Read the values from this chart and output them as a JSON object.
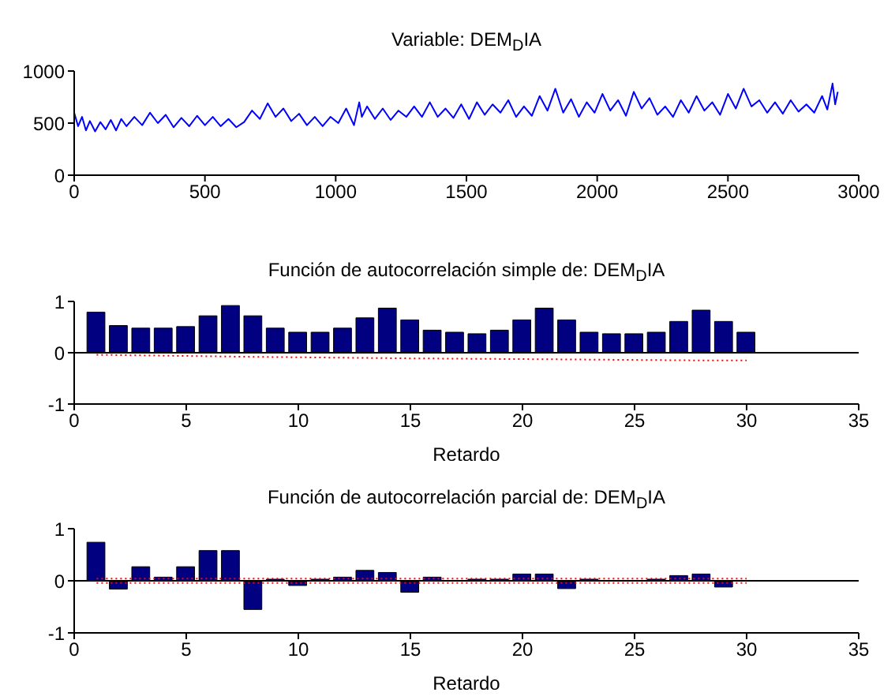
{
  "chart_data": [
    {
      "type": "line",
      "title": "Variable: DEM$_{D}$IA",
      "color": "#0000ff",
      "line_style": "solid",
      "marker": "none",
      "grid": false,
      "legend": false,
      "x": [
        0,
        15,
        30,
        45,
        60,
        80,
        100,
        120,
        140,
        160,
        180,
        200,
        230,
        260,
        290,
        320,
        350,
        380,
        410,
        440,
        470,
        500,
        530,
        560,
        590,
        620,
        650,
        680,
        710,
        740,
        770,
        800,
        830,
        860,
        890,
        920,
        950,
        980,
        1010,
        1040,
        1070,
        1090,
        1100,
        1120,
        1150,
        1180,
        1210,
        1240,
        1270,
        1300,
        1330,
        1360,
        1390,
        1420,
        1450,
        1480,
        1510,
        1540,
        1570,
        1600,
        1630,
        1660,
        1690,
        1720,
        1750,
        1780,
        1810,
        1840,
        1870,
        1900,
        1930,
        1960,
        1990,
        2020,
        2050,
        2080,
        2110,
        2140,
        2170,
        2200,
        2230,
        2260,
        2290,
        2320,
        2350,
        2380,
        2410,
        2440,
        2470,
        2500,
        2530,
        2560,
        2590,
        2620,
        2650,
        2680,
        2710,
        2740,
        2770,
        2800,
        2830,
        2860,
        2880,
        2900,
        2910,
        2920
      ],
      "values": [
        600,
        470,
        560,
        430,
        520,
        420,
        510,
        440,
        530,
        430,
        540,
        470,
        560,
        480,
        600,
        500,
        580,
        460,
        550,
        470,
        570,
        480,
        560,
        470,
        540,
        460,
        510,
        620,
        540,
        690,
        560,
        640,
        520,
        590,
        480,
        560,
        470,
        560,
        500,
        640,
        480,
        700,
        560,
        660,
        540,
        640,
        530,
        620,
        560,
        660,
        560,
        700,
        560,
        640,
        550,
        680,
        540,
        700,
        580,
        680,
        600,
        720,
        560,
        660,
        570,
        760,
        620,
        830,
        600,
        730,
        560,
        700,
        600,
        780,
        620,
        720,
        570,
        800,
        640,
        740,
        580,
        660,
        560,
        720,
        600,
        760,
        620,
        700,
        580,
        780,
        640,
        830,
        660,
        720,
        600,
        700,
        590,
        720,
        610,
        680,
        600,
        760,
        630,
        880,
        680,
        800
      ],
      "xlim": [
        0,
        3000
      ],
      "xticks": [
        0,
        500,
        1000,
        1500,
        2000,
        2500,
        3000
      ],
      "ylim": [
        0,
        1000
      ],
      "yticks": [
        0,
        500,
        1000
      ]
    },
    {
      "type": "bar",
      "title": "Función de autocorrelación simple de: DEM$_{D}$IA",
      "xlabel": "Retardo",
      "grid": false,
      "legend": false,
      "x": [
        1,
        2,
        3,
        4,
        5,
        6,
        7,
        8,
        9,
        10,
        11,
        12,
        13,
        14,
        15,
        16,
        17,
        18,
        19,
        20,
        21,
        22,
        23,
        24,
        25,
        26,
        27,
        28,
        29,
        30
      ],
      "series": [
        {
          "color": "#000080",
          "values": [
            0.79,
            0.53,
            0.48,
            0.48,
            0.51,
            0.72,
            0.92,
            0.72,
            0.48,
            0.4,
            0.4,
            0.48,
            0.68,
            0.87,
            0.64,
            0.44,
            0.4,
            0.37,
            0.44,
            0.64,
            0.87,
            0.64,
            0.4,
            0.37,
            0.37,
            0.4,
            0.61,
            0.83,
            0.61,
            0.4
          ]
        },
        {
          "type": "line",
          "color": "#ff0000",
          "line_style": "dotted",
          "x": [
            1,
            8,
            15,
            22,
            28,
            30
          ],
          "values": [
            -0.04,
            -0.08,
            -0.11,
            -0.13,
            -0.15,
            -0.15
          ]
        }
      ],
      "ref_lines": [
        {
          "axis": "y",
          "value": 0,
          "color": "#000000"
        }
      ],
      "xlim": [
        0,
        35
      ],
      "xticks": [
        0,
        5,
        10,
        15,
        20,
        25,
        30,
        35
      ],
      "ylim": [
        -1,
        1
      ],
      "yticks": [
        -1,
        0,
        1
      ]
    },
    {
      "type": "bar",
      "title": "Función de autocorrelación parcial de: DEM$_{D}$IA",
      "xlabel": "Retardo",
      "grid": false,
      "legend": false,
      "x": [
        1,
        2,
        3,
        4,
        5,
        6,
        7,
        8,
        9,
        10,
        11,
        12,
        13,
        14,
        15,
        16,
        17,
        18,
        19,
        20,
        21,
        22,
        23,
        24,
        25,
        26,
        27,
        28,
        29,
        30
      ],
      "series": [
        {
          "color": "#000080",
          "values": [
            0.74,
            -0.16,
            0.27,
            0.07,
            0.27,
            0.58,
            0.58,
            -0.55,
            0.03,
            -0.09,
            0.03,
            0.07,
            0.2,
            0.16,
            -0.22,
            0.07,
            0,
            0.03,
            0.03,
            0.13,
            0.13,
            -0.15,
            0.03,
            0,
            0,
            0.03,
            0.1,
            0.13,
            -0.12,
            0
          ]
        },
        {
          "type": "line",
          "color": "#ff0000",
          "line_style": "dotted",
          "x": [
            1,
            30
          ],
          "values": [
            0.04,
            0.04
          ]
        },
        {
          "type": "line",
          "color": "#ff0000",
          "line_style": "dotted",
          "x": [
            1,
            30
          ],
          "values": [
            -0.04,
            -0.04
          ]
        }
      ],
      "ref_lines": [
        {
          "axis": "y",
          "value": 0,
          "color": "#000000"
        }
      ],
      "xlim": [
        0,
        35
      ],
      "xticks": [
        0,
        5,
        10,
        15,
        20,
        25,
        30,
        35
      ],
      "ylim": [
        -1,
        1
      ],
      "yticks": [
        -1,
        0,
        1
      ]
    }
  ]
}
